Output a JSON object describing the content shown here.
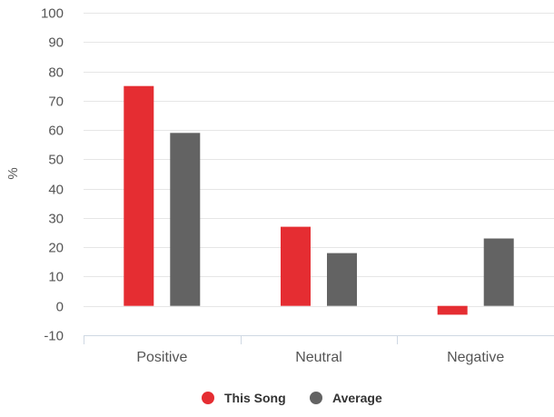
{
  "chart_data": {
    "type": "bar",
    "title": "",
    "xlabel": "",
    "ylabel": "%",
    "ylim": [
      -10,
      100
    ],
    "yticks": [
      -10,
      0,
      10,
      20,
      30,
      40,
      50,
      60,
      70,
      80,
      90,
      100
    ],
    "grid": true,
    "legend_position": "bottom",
    "categories": [
      "Positive",
      "Neutral",
      "Negative"
    ],
    "series": [
      {
        "name": "This Song",
        "color": "#e52d32",
        "values": [
          75,
          27,
          -3
        ]
      },
      {
        "name": "Average",
        "color": "#636363",
        "values": [
          59,
          18,
          23
        ]
      }
    ]
  }
}
